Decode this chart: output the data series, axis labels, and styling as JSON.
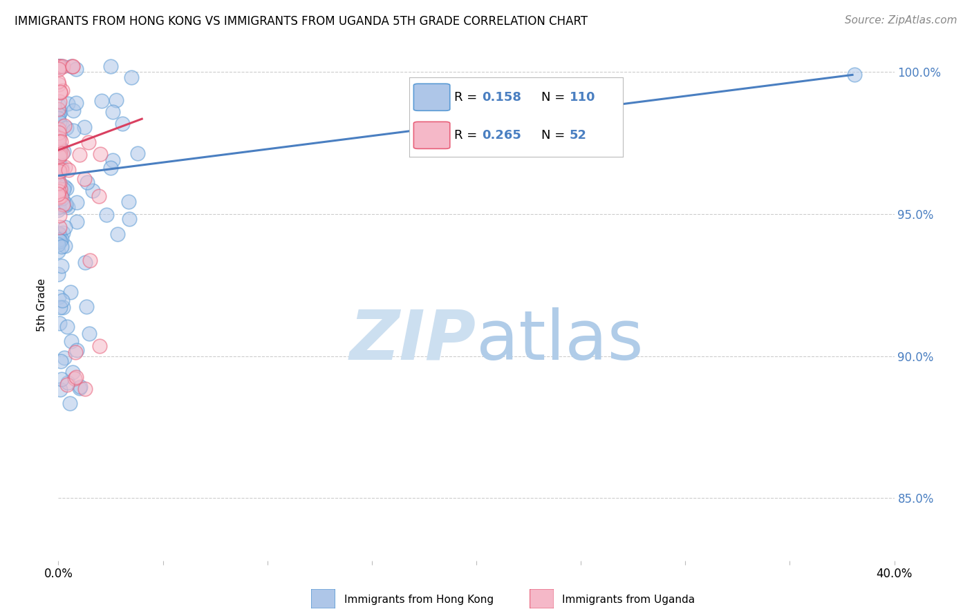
{
  "title": "IMMIGRANTS FROM HONG KONG VS IMMIGRANTS FROM UGANDA 5TH GRADE CORRELATION CHART",
  "source": "Source: ZipAtlas.com",
  "ylabel": "5th Grade",
  "xlim": [
    0.0,
    0.4
  ],
  "ylim": [
    0.828,
    1.008
  ],
  "yticks": [
    0.85,
    0.9,
    0.95,
    1.0
  ],
  "ytick_labels": [
    "85.0%",
    "90.0%",
    "95.0%",
    "100.0%"
  ],
  "xtick_positions": [
    0.0,
    0.05,
    0.1,
    0.15,
    0.2,
    0.25,
    0.3,
    0.35,
    0.4
  ],
  "hk_R": 0.158,
  "hk_N": 110,
  "ug_R": 0.265,
  "ug_N": 52,
  "hk_fill_color": "#aec6e8",
  "ug_fill_color": "#f5b8c8",
  "hk_edge_color": "#5b9bd5",
  "ug_edge_color": "#e8607a",
  "hk_line_color": "#4a7fc1",
  "ug_line_color": "#d94060",
  "watermark_zip_color": "#ccdff0",
  "watermark_atlas_color": "#b0cce8",
  "axis_label_color": "#4a7fc1",
  "background_color": "#ffffff",
  "grid_color": "#cccccc",
  "title_fontsize": 12,
  "source_fontsize": 11,
  "tick_fontsize": 12,
  "ylabel_fontsize": 11,
  "legend_fontsize": 13,
  "scatter_size": 220,
  "scatter_alpha": 0.55,
  "hk_line_x0": 0.0,
  "hk_line_y0": 0.9635,
  "hk_line_x1": 0.38,
  "hk_line_y1": 0.999,
  "ug_line_x0": 0.0,
  "ug_line_y0": 0.9725,
  "ug_line_x1": 0.04,
  "ug_line_y1": 0.9835
}
